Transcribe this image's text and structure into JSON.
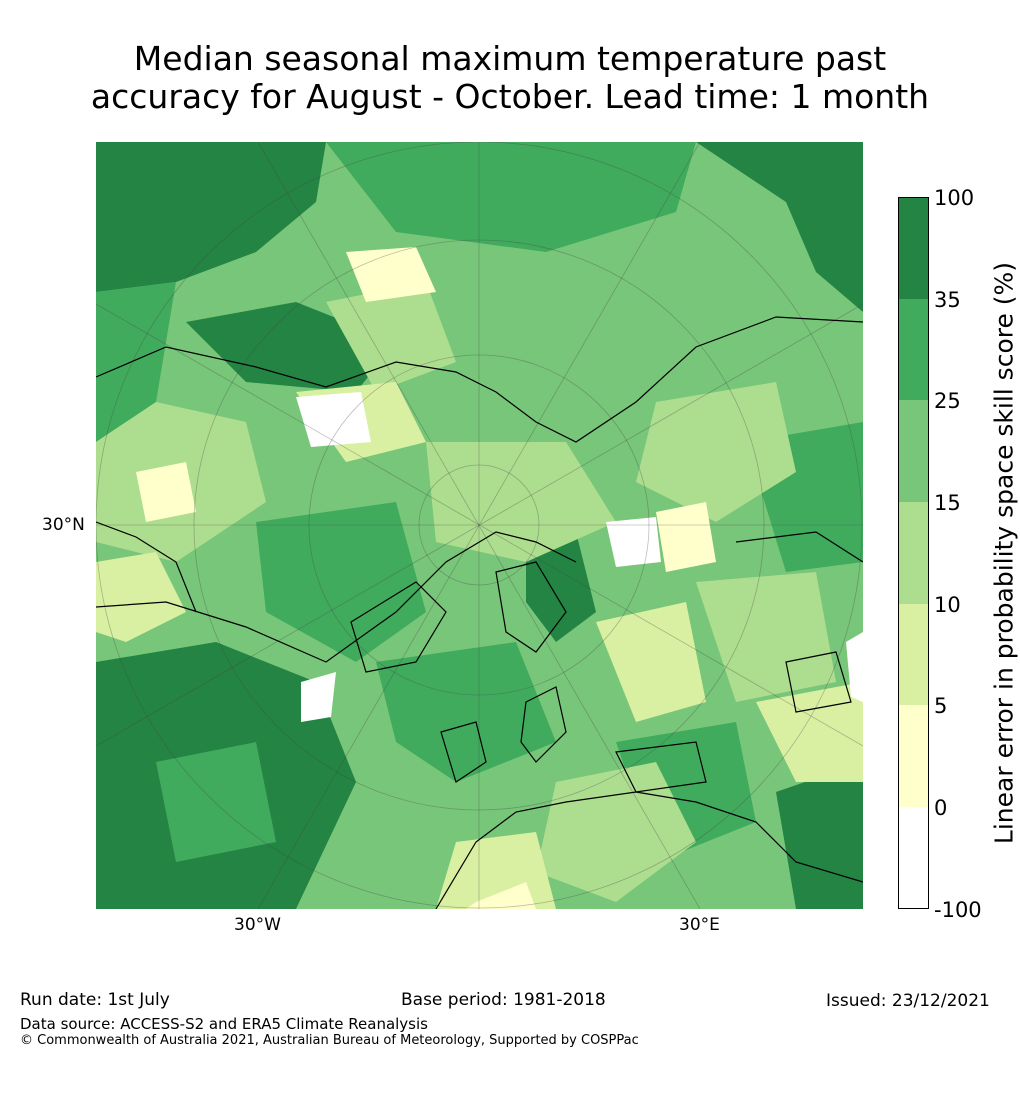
{
  "title": {
    "line1": "Median seasonal maximum temperature past",
    "line2": "accuracy for August - October. Lead time: 1 month"
  },
  "map": {
    "lat_label": "30°N",
    "lon_labels": [
      "30°W",
      "30°E"
    ]
  },
  "colorbar": {
    "label": "Linear error in probability space skill score (%)",
    "ticks": [
      "100",
      "35",
      "25",
      "15",
      "10",
      "5",
      "0",
      "-100"
    ],
    "colors": [
      "#238443",
      "#41ab5d",
      "#78c679",
      "#addd8e",
      "#d9f0a3",
      "#ffffcc",
      "#ffffff"
    ]
  },
  "footer": {
    "run_date": "Run date: 1st July",
    "base_period": "Base period: 1981-2018",
    "issued": "Issued: 23/12/2021",
    "data_source": "Data source: ACCESS-S2 and ERA5 Climate Reanalysis",
    "copyright": "© Commonwealth of Australia 2021, Australian Bureau of Meteorology, Supported by COSPPac"
  }
}
